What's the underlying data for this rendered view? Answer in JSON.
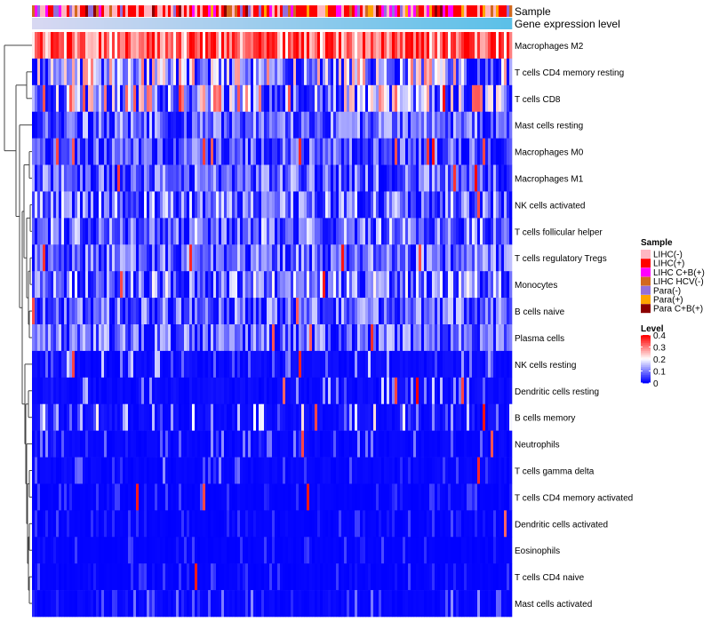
{
  "chart_data": {
    "type": "heatmap",
    "title": "",
    "annotation_tracks": [
      {
        "name": "Sample",
        "kind": "categorical"
      },
      {
        "name": "Gene expression level",
        "kind": "continuous"
      }
    ],
    "rows": [
      {
        "name": "Macrophages M2",
        "mean": 0.3
      },
      {
        "name": "T cells CD4 memory resting",
        "mean": 0.13
      },
      {
        "name": "T cells CD8",
        "mean": 0.14
      },
      {
        "name": "Mast cells resting",
        "mean": 0.07
      },
      {
        "name": "Macrophages M0",
        "mean": 0.06
      },
      {
        "name": "Macrophages M1",
        "mean": 0.07
      },
      {
        "name": "NK cells activated",
        "mean": 0.08
      },
      {
        "name": "T cells follicular helper",
        "mean": 0.08
      },
      {
        "name": "T cells regulatory  Tregs",
        "mean": 0.07
      },
      {
        "name": "Monocytes",
        "mean": 0.09
      },
      {
        "name": "B cells naive",
        "mean": 0.07
      },
      {
        "name": "Plasma cells",
        "mean": 0.07
      },
      {
        "name": "NK cells resting",
        "mean": 0.03
      },
      {
        "name": "Dendritic cells resting",
        "mean": 0.03
      },
      {
        "name": "B cells memory",
        "mean": 0.04
      },
      {
        "name": "Neutrophils",
        "mean": 0.02
      },
      {
        "name": "T cells gamma delta",
        "mean": 0.02
      },
      {
        "name": "T cells CD4 memory activated",
        "mean": 0.01
      },
      {
        "name": "Dendritic cells activated",
        "mean": 0.01
      },
      {
        "name": "Eosinophils",
        "mean": 0.01
      },
      {
        "name": "T cells CD4 naive",
        "mean": 0.01
      },
      {
        "name": "Mast cells activated",
        "mean": 0.02
      }
    ],
    "sample_legend": {
      "title": "Sample",
      "items": [
        {
          "label": "LIHC(-)",
          "color": "#ffb6c1"
        },
        {
          "label": "LIHC(+)",
          "color": "#ff0000"
        },
        {
          "label": "LIHC C+B(+)",
          "color": "#ff00ff"
        },
        {
          "label": "LIHC HCV(-)",
          "color": "#d2691e"
        },
        {
          "label": "Para(-)",
          "color": "#9370db"
        },
        {
          "label": "Para(+)",
          "color": "#ffa500"
        },
        {
          "label": "Para C+B(+)",
          "color": "#8b0000"
        }
      ]
    },
    "level_legend": {
      "title": "Level",
      "ticks": [
        "0.4",
        "0.3",
        "0.2",
        "0.1",
        "0"
      ],
      "tick_values": [
        0.4,
        0.3,
        0.2,
        0.1,
        0
      ],
      "range": [
        0,
        0.4
      ],
      "colors": {
        "low": "#0000ff",
        "mid": "#ffffff",
        "high": "#ff0000"
      }
    },
    "expression_track_colors": {
      "low": "#d8d8f2",
      "high": "#5bc0e8"
    }
  }
}
